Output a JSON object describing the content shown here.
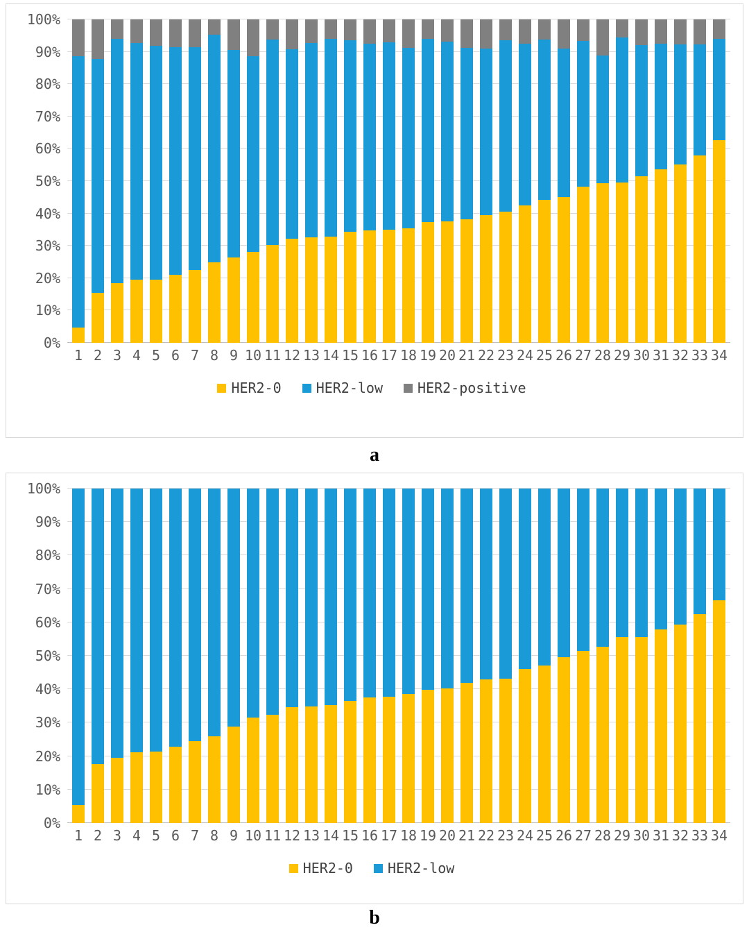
{
  "colors": {
    "her2_0": "#FFC000",
    "her2_low": "#1A9BD7",
    "her2_positive": "#808080",
    "gridline": "#D9D9D9",
    "axis_zero_line": "#BFBFBF",
    "tick_text": "#595959",
    "legend_text": "#404040"
  },
  "chart_data": [
    {
      "id": "a",
      "type": "bar",
      "stacked": true,
      "units": "percent",
      "caption": "a",
      "grid": true,
      "legend_position": "bottom",
      "y_axis": {
        "min": 0,
        "max": 100,
        "ticks": [
          "0%",
          "10%",
          "20%",
          "30%",
          "40%",
          "50%",
          "60%",
          "70%",
          "80%",
          "90%",
          "100%"
        ]
      },
      "categories": [
        "1",
        "2",
        "3",
        "4",
        "5",
        "6",
        "7",
        "8",
        "9",
        "10",
        "11",
        "12",
        "13",
        "14",
        "15",
        "16",
        "17",
        "18",
        "19",
        "20",
        "21",
        "22",
        "23",
        "24",
        "25",
        "26",
        "27",
        "28",
        "29",
        "30",
        "31",
        "32",
        "33",
        "34"
      ],
      "series": [
        {
          "name": "HER2-0",
          "color_key": "her2_0",
          "values": [
            4.8,
            15.5,
            18.5,
            19.6,
            19.6,
            21.0,
            22.6,
            24.9,
            26.4,
            28.2,
            30.3,
            32.1,
            32.6,
            32.9,
            34.3,
            34.8,
            35.0,
            35.4,
            37.4,
            37.5,
            38.2,
            39.5,
            40.5,
            42.4,
            44.2,
            45.0,
            48.2,
            49.4,
            49.6,
            51.6,
            53.7,
            55.1,
            57.9,
            62.6
          ]
        },
        {
          "name": "HER2-low",
          "color_key": "her2_low",
          "values": [
            83.8,
            72.3,
            75.5,
            73.2,
            72.2,
            70.4,
            68.8,
            70.4,
            64.2,
            60.4,
            63.4,
            58.7,
            60.2,
            61.1,
            59.3,
            57.6,
            58.0,
            55.8,
            56.6,
            55.7,
            53.1,
            51.5,
            53.0,
            50.1,
            49.6,
            46.0,
            45.1,
            39.5,
            44.8,
            40.5,
            38.8,
            37.2,
            34.4,
            31.4
          ]
        },
        {
          "name": "HER2-positive",
          "color_key": "her2_positive",
          "values": [
            11.4,
            12.2,
            6.0,
            7.2,
            8.2,
            8.6,
            8.6,
            4.7,
            9.4,
            11.4,
            6.3,
            9.2,
            7.2,
            6.0,
            6.4,
            7.6,
            7.0,
            8.8,
            6.0,
            6.8,
            8.7,
            9.0,
            6.5,
            7.5,
            6.2,
            9.0,
            6.7,
            11.1,
            5.6,
            7.9,
            7.5,
            7.7,
            7.7,
            6.0
          ]
        }
      ]
    },
    {
      "id": "b",
      "type": "bar",
      "stacked": true,
      "units": "percent",
      "caption": "b",
      "grid": true,
      "legend_position": "bottom",
      "y_axis": {
        "min": 0,
        "max": 100,
        "ticks": [
          "0%",
          "10%",
          "20%",
          "30%",
          "40%",
          "50%",
          "60%",
          "70%",
          "80%",
          "90%",
          "100%"
        ]
      },
      "categories": [
        "1",
        "2",
        "3",
        "4",
        "5",
        "6",
        "7",
        "8",
        "9",
        "10",
        "11",
        "12",
        "13",
        "14",
        "15",
        "16",
        "17",
        "18",
        "19",
        "20",
        "21",
        "22",
        "23",
        "24",
        "25",
        "26",
        "27",
        "28",
        "29",
        "30",
        "31",
        "32",
        "33",
        "34"
      ],
      "series": [
        {
          "name": "HER2-0",
          "color_key": "her2_0",
          "values": [
            5.5,
            17.6,
            19.5,
            21.2,
            21.4,
            22.8,
            24.5,
            25.9,
            28.8,
            31.6,
            32.3,
            34.7,
            34.9,
            35.3,
            36.5,
            37.5,
            37.7,
            38.6,
            39.8,
            40.3,
            41.9,
            43.0,
            43.2,
            46.0,
            47.2,
            49.6,
            51.5,
            52.6,
            55.6,
            55.7,
            57.8,
            59.4,
            62.5,
            66.5
          ]
        },
        {
          "name": "HER2-low",
          "color_key": "her2_low",
          "values": [
            94.5,
            82.4,
            80.5,
            78.8,
            78.6,
            77.2,
            75.5,
            74.1,
            71.2,
            68.4,
            67.7,
            65.3,
            65.1,
            64.7,
            63.5,
            62.5,
            62.3,
            61.4,
            60.2,
            59.7,
            58.1,
            57.0,
            56.8,
            54.0,
            52.8,
            50.4,
            48.5,
            47.4,
            44.4,
            44.3,
            42.2,
            40.6,
            37.5,
            33.5
          ]
        }
      ]
    }
  ]
}
